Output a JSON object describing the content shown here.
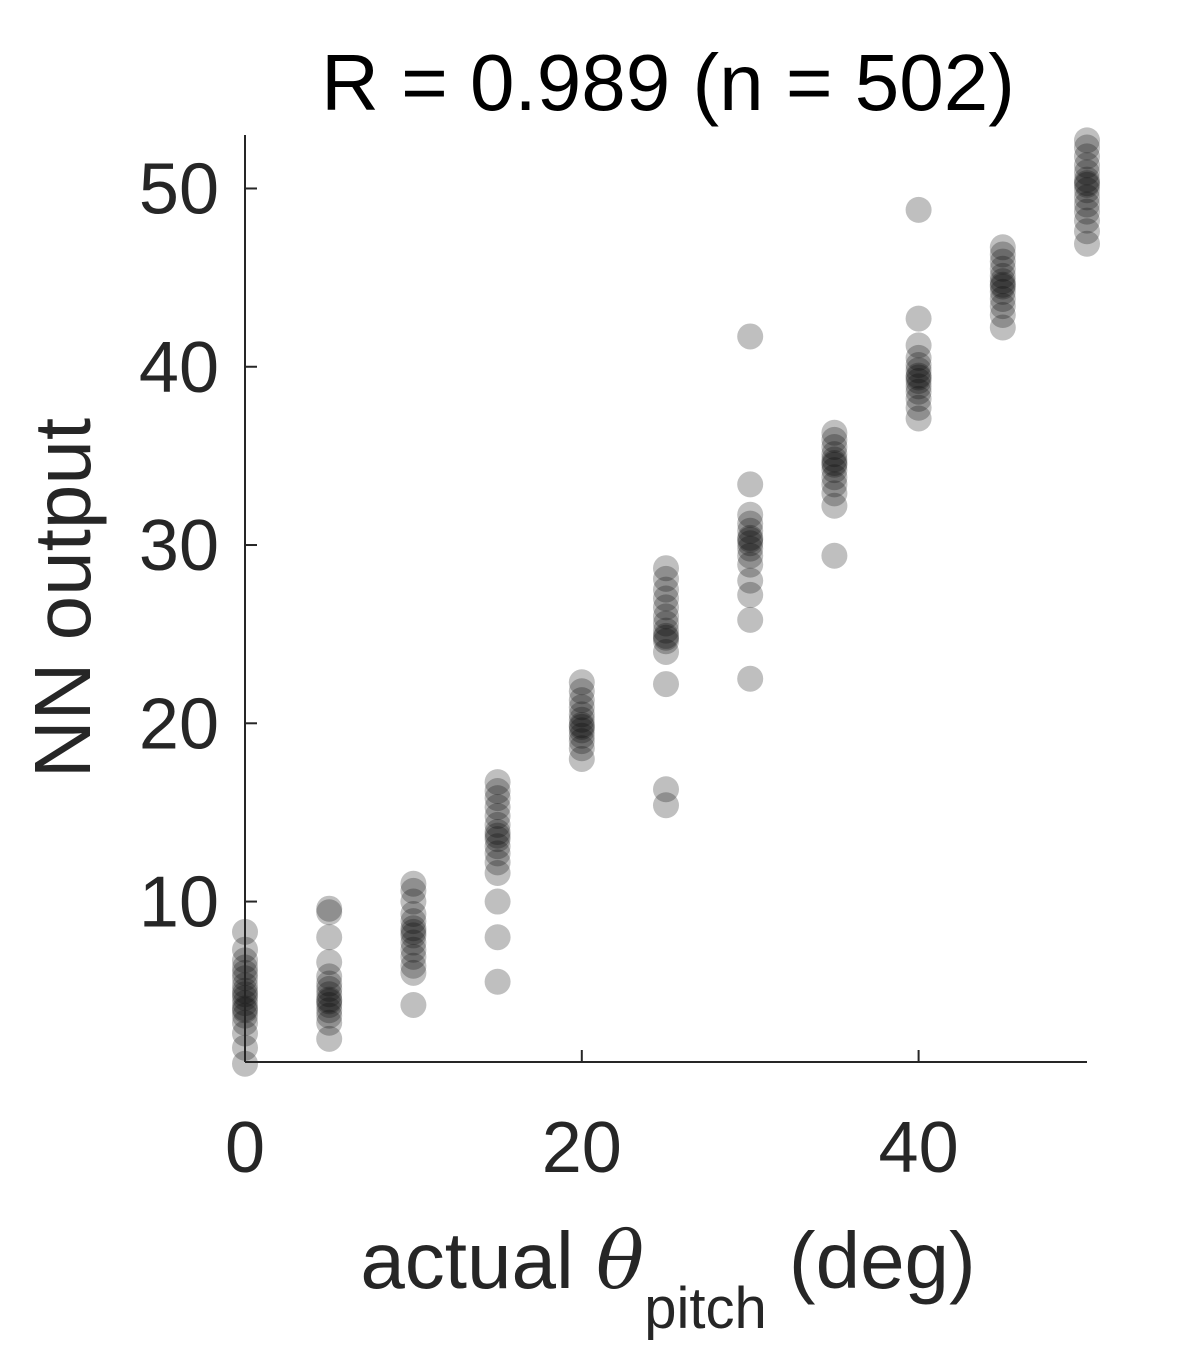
{
  "chart_data": {
    "type": "scatter",
    "title": "R = 0.989 (n = 502)",
    "xlabel": {
      "prefix": "actual ",
      "symbol": "θ",
      "subscript": "pitch",
      "suffix": " (deg)"
    },
    "ylabel": "NN output",
    "xlim": [
      0,
      50
    ],
    "ylim": [
      1,
      53
    ],
    "xticks": [
      0,
      20,
      40
    ],
    "xtick_labels": [
      "0",
      "20",
      "40"
    ],
    "yticks": [
      10,
      20,
      30,
      40,
      50
    ],
    "ytick_labels": [
      "10",
      "20",
      "30",
      "40",
      "50"
    ],
    "grid": false,
    "legend": "none",
    "marker_color": "#000000",
    "marker_opacity": 0.25,
    "series": [
      {
        "points": [
          {
            "x": 0,
            "y": 0.9
          },
          {
            "x": 0,
            "y": 1.8
          },
          {
            "x": 0,
            "y": 2.6
          },
          {
            "x": 0,
            "y": 3.2
          },
          {
            "x": 0,
            "y": 3.6
          },
          {
            "x": 0,
            "y": 4.0
          },
          {
            "x": 0,
            "y": 4.3
          },
          {
            "x": 0,
            "y": 4.6
          },
          {
            "x": 0,
            "y": 5.0
          },
          {
            "x": 0,
            "y": 5.3
          },
          {
            "x": 0,
            "y": 5.7
          },
          {
            "x": 0,
            "y": 6.0
          },
          {
            "x": 0,
            "y": 6.3
          },
          {
            "x": 0,
            "y": 6.7
          },
          {
            "x": 0,
            "y": 7.3
          },
          {
            "x": 0,
            "y": 8.3
          },
          {
            "x": 0,
            "y": 4.8
          },
          {
            "x": 0,
            "y": 3.9
          },
          {
            "x": 5,
            "y": 2.3
          },
          {
            "x": 5,
            "y": 3.2
          },
          {
            "x": 5,
            "y": 3.6
          },
          {
            "x": 5,
            "y": 3.9
          },
          {
            "x": 5,
            "y": 4.2
          },
          {
            "x": 5,
            "y": 4.5
          },
          {
            "x": 5,
            "y": 4.8
          },
          {
            "x": 5,
            "y": 5.1
          },
          {
            "x": 5,
            "y": 5.4
          },
          {
            "x": 5,
            "y": 5.8
          },
          {
            "x": 5,
            "y": 6.6
          },
          {
            "x": 5,
            "y": 8.0
          },
          {
            "x": 5,
            "y": 9.4
          },
          {
            "x": 5,
            "y": 9.6
          },
          {
            "x": 5,
            "y": 4.4
          },
          {
            "x": 10,
            "y": 4.2
          },
          {
            "x": 10,
            "y": 6.0
          },
          {
            "x": 10,
            "y": 6.4
          },
          {
            "x": 10,
            "y": 6.9
          },
          {
            "x": 10,
            "y": 7.3
          },
          {
            "x": 10,
            "y": 7.7
          },
          {
            "x": 10,
            "y": 8.1
          },
          {
            "x": 10,
            "y": 8.5
          },
          {
            "x": 10,
            "y": 8.9
          },
          {
            "x": 10,
            "y": 9.3
          },
          {
            "x": 10,
            "y": 10.0
          },
          {
            "x": 10,
            "y": 10.6
          },
          {
            "x": 10,
            "y": 11.0
          },
          {
            "x": 10,
            "y": 8.3
          },
          {
            "x": 15,
            "y": 5.5
          },
          {
            "x": 15,
            "y": 8.0
          },
          {
            "x": 15,
            "y": 10.0
          },
          {
            "x": 15,
            "y": 11.6
          },
          {
            "x": 15,
            "y": 12.2
          },
          {
            "x": 15,
            "y": 12.7
          },
          {
            "x": 15,
            "y": 13.1
          },
          {
            "x": 15,
            "y": 13.5
          },
          {
            "x": 15,
            "y": 13.9
          },
          {
            "x": 15,
            "y": 14.3
          },
          {
            "x": 15,
            "y": 14.8
          },
          {
            "x": 15,
            "y": 15.3
          },
          {
            "x": 15,
            "y": 15.8
          },
          {
            "x": 15,
            "y": 16.2
          },
          {
            "x": 15,
            "y": 16.7
          },
          {
            "x": 15,
            "y": 13.7
          },
          {
            "x": 20,
            "y": 18.0
          },
          {
            "x": 20,
            "y": 18.6
          },
          {
            "x": 20,
            "y": 19.0
          },
          {
            "x": 20,
            "y": 19.3
          },
          {
            "x": 20,
            "y": 19.6
          },
          {
            "x": 20,
            "y": 19.9
          },
          {
            "x": 20,
            "y": 20.2
          },
          {
            "x": 20,
            "y": 20.5
          },
          {
            "x": 20,
            "y": 20.9
          },
          {
            "x": 20,
            "y": 21.3
          },
          {
            "x": 20,
            "y": 21.8
          },
          {
            "x": 20,
            "y": 22.3
          },
          {
            "x": 20,
            "y": 19.8
          },
          {
            "x": 25,
            "y": 15.4
          },
          {
            "x": 25,
            "y": 16.3
          },
          {
            "x": 25,
            "y": 22.2
          },
          {
            "x": 25,
            "y": 24.0
          },
          {
            "x": 25,
            "y": 24.6
          },
          {
            "x": 25,
            "y": 24.9
          },
          {
            "x": 25,
            "y": 25.2
          },
          {
            "x": 25,
            "y": 25.6
          },
          {
            "x": 25,
            "y": 26.0
          },
          {
            "x": 25,
            "y": 26.5
          },
          {
            "x": 25,
            "y": 27.0
          },
          {
            "x": 25,
            "y": 27.5
          },
          {
            "x": 25,
            "y": 28.1
          },
          {
            "x": 25,
            "y": 28.7
          },
          {
            "x": 25,
            "y": 24.8
          },
          {
            "x": 30,
            "y": 22.5
          },
          {
            "x": 30,
            "y": 25.8
          },
          {
            "x": 30,
            "y": 27.2
          },
          {
            "x": 30,
            "y": 28.0
          },
          {
            "x": 30,
            "y": 28.9
          },
          {
            "x": 30,
            "y": 29.4
          },
          {
            "x": 30,
            "y": 29.8
          },
          {
            "x": 30,
            "y": 30.1
          },
          {
            "x": 30,
            "y": 30.4
          },
          {
            "x": 30,
            "y": 30.8
          },
          {
            "x": 30,
            "y": 31.2
          },
          {
            "x": 30,
            "y": 31.7
          },
          {
            "x": 30,
            "y": 33.4
          },
          {
            "x": 30,
            "y": 41.7
          },
          {
            "x": 30,
            "y": 30.3
          },
          {
            "x": 35,
            "y": 29.4
          },
          {
            "x": 35,
            "y": 32.2
          },
          {
            "x": 35,
            "y": 32.9
          },
          {
            "x": 35,
            "y": 33.4
          },
          {
            "x": 35,
            "y": 33.8
          },
          {
            "x": 35,
            "y": 34.2
          },
          {
            "x": 35,
            "y": 34.5
          },
          {
            "x": 35,
            "y": 34.8
          },
          {
            "x": 35,
            "y": 35.1
          },
          {
            "x": 35,
            "y": 35.5
          },
          {
            "x": 35,
            "y": 35.9
          },
          {
            "x": 35,
            "y": 36.3
          },
          {
            "x": 35,
            "y": 34.6
          },
          {
            "x": 40,
            "y": 37.1
          },
          {
            "x": 40,
            "y": 37.7
          },
          {
            "x": 40,
            "y": 38.2
          },
          {
            "x": 40,
            "y": 38.6
          },
          {
            "x": 40,
            "y": 38.9
          },
          {
            "x": 40,
            "y": 39.2
          },
          {
            "x": 40,
            "y": 39.5
          },
          {
            "x": 40,
            "y": 39.8
          },
          {
            "x": 40,
            "y": 40.1
          },
          {
            "x": 40,
            "y": 40.5
          },
          {
            "x": 40,
            "y": 41.2
          },
          {
            "x": 40,
            "y": 42.7
          },
          {
            "x": 40,
            "y": 48.8
          },
          {
            "x": 40,
            "y": 39.4
          },
          {
            "x": 45,
            "y": 42.2
          },
          {
            "x": 45,
            "y": 42.9
          },
          {
            "x": 45,
            "y": 43.4
          },
          {
            "x": 45,
            "y": 43.8
          },
          {
            "x": 45,
            "y": 44.2
          },
          {
            "x": 45,
            "y": 44.5
          },
          {
            "x": 45,
            "y": 44.8
          },
          {
            "x": 45,
            "y": 45.1
          },
          {
            "x": 45,
            "y": 45.5
          },
          {
            "x": 45,
            "y": 45.9
          },
          {
            "x": 45,
            "y": 46.3
          },
          {
            "x": 45,
            "y": 46.7
          },
          {
            "x": 45,
            "y": 44.6
          },
          {
            "x": 50,
            "y": 46.9
          },
          {
            "x": 50,
            "y": 47.6
          },
          {
            "x": 50,
            "y": 48.2
          },
          {
            "x": 50,
            "y": 48.7
          },
          {
            "x": 50,
            "y": 49.1
          },
          {
            "x": 50,
            "y": 49.5
          },
          {
            "x": 50,
            "y": 49.9
          },
          {
            "x": 50,
            "y": 50.2
          },
          {
            "x": 50,
            "y": 50.5
          },
          {
            "x": 50,
            "y": 50.9
          },
          {
            "x": 50,
            "y": 51.3
          },
          {
            "x": 50,
            "y": 51.8
          },
          {
            "x": 50,
            "y": 52.3
          },
          {
            "x": 50,
            "y": 52.7
          },
          {
            "x": 50,
            "y": 50.3
          }
        ]
      }
    ]
  }
}
